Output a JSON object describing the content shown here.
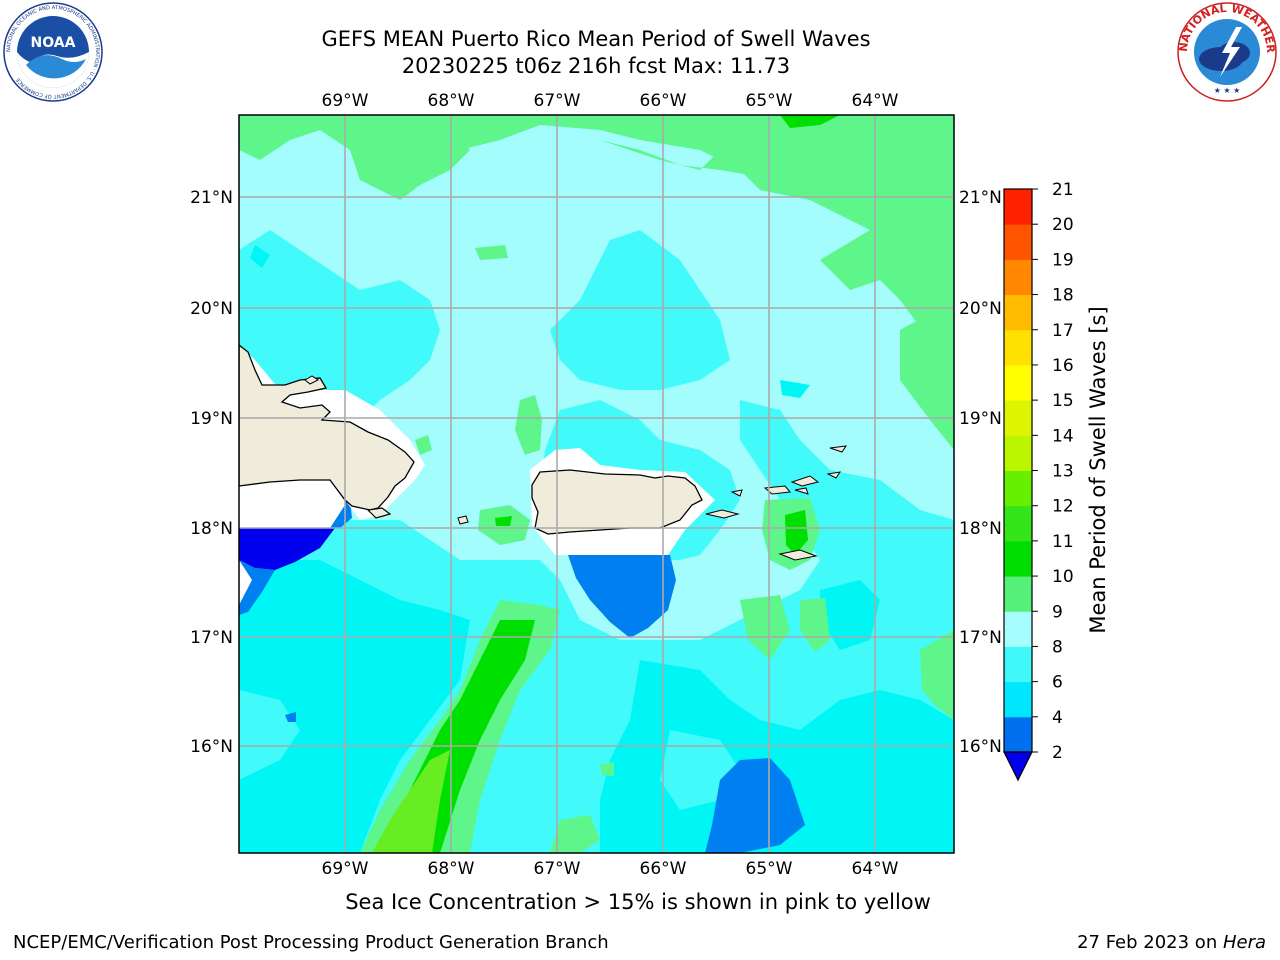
{
  "header": {
    "title_line1": "GEFS MEAN Puerto Rico Mean Period of Swell Waves",
    "title_line2": "20230225 t06z 216h fcst   Max: 11.73"
  },
  "logos": {
    "left": "NOAA",
    "left_ring_text": "NATIONAL OCEANIC AND ATMOSPHERIC ADMINISTRATION · U.S. DEPARTMENT OF COMMERCE",
    "right_ring_text": "NATIONAL WEATHER SERVICE"
  },
  "map": {
    "lon_labels": [
      "69°W",
      "68°W",
      "67°W",
      "66°W",
      "65°W",
      "64°W"
    ],
    "lat_labels": [
      "21°N",
      "20°N",
      "19°N",
      "18°N",
      "17°N",
      "16°N"
    ],
    "max_value": 11.73,
    "colors": {
      "land": "#efecdc",
      "band_6_8": "#42fafa",
      "band_8_9": "#a3fdfd",
      "band_9_10": "#5ef58a",
      "band_10_11": "#00e000",
      "band_11_12": "#66ee22",
      "band_4_6": "#00f5f5",
      "band_2_4": "#0080f0",
      "below_2": "#0000ee"
    }
  },
  "colorbar": {
    "label": "Mean Period of Swell Waves [s]",
    "ticks": [
      "2",
      "4",
      "6",
      "8",
      "9",
      "10",
      "11",
      "12",
      "13",
      "14",
      "15",
      "16",
      "17",
      "18",
      "19",
      "20",
      "21"
    ],
    "colors": [
      "#0070f0",
      "#00e6ff",
      "#40f8f8",
      "#a6fdfd",
      "#55f07a",
      "#00dd00",
      "#33e51a",
      "#66f000",
      "#bbf500",
      "#ddf500",
      "#ffff00",
      "#ffe000",
      "#ffbb00",
      "#ff8800",
      "#ff5500",
      "#ff2200"
    ],
    "extend_color": "#0000ee"
  },
  "footer": {
    "note": "Sea Ice Concentration > 15% is shown in pink to yellow",
    "left": "NCEP/EMC/Verification Post Processing Product Generation Branch",
    "date": "27 Feb 2023 on ",
    "machine": "Hera"
  }
}
